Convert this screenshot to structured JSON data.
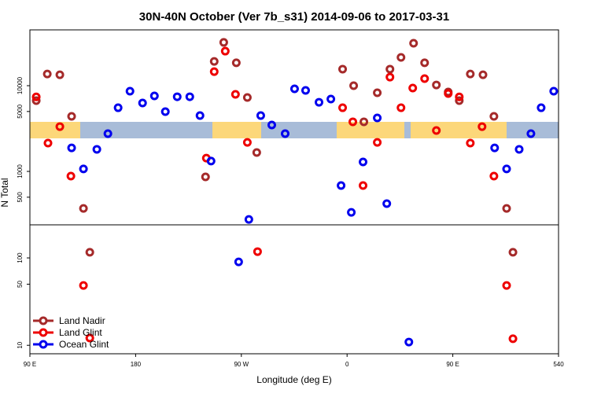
{
  "chart_data": [
    {
      "type": "scatter",
      "title": "30N-40N October (Ver 7b_s31)   2014-09-06 to 2017-03-31",
      "ylabel": "N Total",
      "y_scale": "log",
      "xlim": [
        90,
        540
      ],
      "ylim": [
        238,
        44800
      ],
      "yticks": [
        500,
        1000,
        5000,
        10000
      ],
      "series": [
        {
          "name": "Land Nadir",
          "color": "#a52a2a",
          "x": [
            95.4,
            104.8,
            115.5,
            125.5,
            135.6,
            239.5,
            246.9,
            255,
            265.7,
            275.1,
            283.1,
            356.2,
            365.6,
            374.3,
            385.7,
            396.5,
            405.9,
            416.6,
            426,
            436,
            446.1,
            455.5,
            464.9,
            475.7,
            485,
            495.8
          ],
          "values": [
            6700,
            13700,
            13400,
            4390,
            370,
            863,
            19200,
            32000,
            18500,
            7280,
            1660,
            15600,
            10000,
            3790,
            8270,
            15600,
            21400,
            31300,
            18500,
            10200,
            8450,
            6700,
            13700,
            13400,
            4390,
            370
          ]
        },
        {
          "name": "Land Glint",
          "color": "#ee0000",
          "x": [
            95.4,
            105.4,
            115.5,
            124.9,
            240.2,
            246.9,
            256.3,
            265,
            275.1,
            356.2,
            364.9,
            373.6,
            385.7,
            396.5,
            405.9,
            415.9,
            426,
            436,
            446.1,
            455.5,
            464.9,
            474.9,
            485
          ],
          "values": [
            7400,
            2140,
            3330,
            881,
            1430,
            14600,
            25300,
            7930,
            2180,
            5530,
            3790,
            684,
            2180,
            12600,
            5530,
            9380,
            12100,
            3000,
            8100,
            7400,
            2140,
            3330,
            881
          ]
        },
        {
          "name": "Ocean Glint",
          "color": "#0000ee",
          "x": [
            125.5,
            135.6,
            147,
            156.4,
            165.1,
            175.2,
            185.9,
            196,
            205.3,
            215.4,
            226.1,
            234.8,
            244.2,
            276.4,
            286.5,
            295.9,
            307.3,
            315.3,
            324.7,
            336.1,
            346.2,
            354.9,
            363.6,
            373.6,
            385.7,
            393.8,
            485.6,
            495.8,
            506.5,
            516.5,
            525.2,
            535.9
          ],
          "values": [
            1880,
            1070,
            1810,
            2760,
            5530,
            8630,
            6290,
            7600,
            4980,
            7430,
            7430,
            4480,
            1320,
            275,
            4480,
            3480,
            2760,
            9190,
            8810,
            6410,
            6980,
            684,
            333,
            1290,
            4210,
            421,
            1880,
            1070,
            1810,
            2760,
            5530,
            8630
          ]
        }
      ]
    },
    {
      "type": "scatter",
      "xlabel": "Longitude (deg E)",
      "y_scale": "log",
      "xlim": [
        90,
        540
      ],
      "ylim": [
        8,
        239
      ],
      "xticks": [
        {
          "value": 90,
          "label": "90 E"
        },
        180,
        {
          "value": 270,
          "label": "90 W"
        },
        {
          "value": 360,
          "label": "0"
        },
        {
          "value": 450,
          "label": "90 E"
        },
        540
      ],
      "yticks": [
        10,
        50,
        100
      ],
      "series": [
        {
          "color": "#a52a2a",
          "x": [
            141,
            501.2
          ],
          "values": [
            116,
            116
          ]
        },
        {
          "color": "#ee0000",
          "x": [
            135.6,
            141,
            283.8,
            495.8,
            501.2
          ],
          "values": [
            48.4,
            12.1,
            118,
            48.4,
            11.9
          ]
        },
        {
          "color": "#0000ee",
          "x": [
            267.7,
            412.6
          ],
          "values": [
            90.1,
            10.9
          ]
        }
      ]
    }
  ]
}
